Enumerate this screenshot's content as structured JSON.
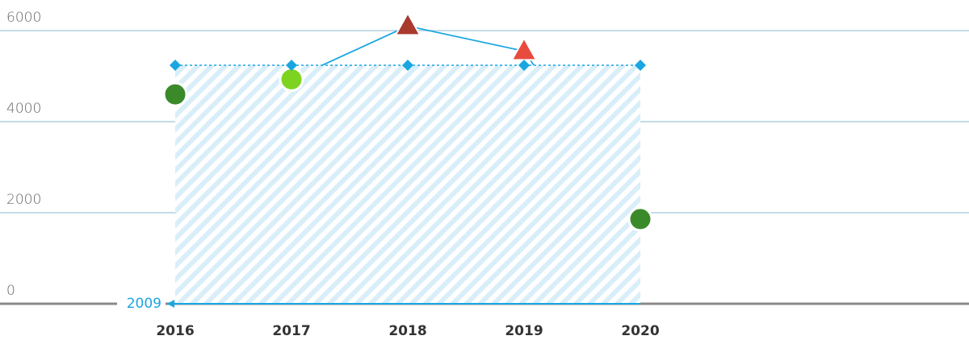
{
  "chart_data": {
    "type": "line",
    "categories": [
      "2016",
      "2017",
      "2018",
      "2019",
      "2020"
    ],
    "series": [
      {
        "values": [
          4600,
          4930,
          6100,
          5550,
          1860
        ],
        "color": "#1aa6e0",
        "point_colors": [
          "#3a8a2a",
          "#7ed321",
          "#a83a2e",
          "#e84a3e",
          "#3a8a2a"
        ],
        "point_markers": [
          "circle",
          "circle",
          "triangle",
          "triangle",
          "circle"
        ]
      },
      {
        "values": [
          5240,
          5240,
          5240,
          5240,
          5240
        ],
        "color": "#1aa6e0",
        "dashed": true,
        "hatched_area": true,
        "marker": "diamond"
      }
    ],
    "ylim": [
      0,
      6000
    ],
    "yticks": [
      0,
      2000,
      4000,
      6000
    ],
    "grid": true,
    "annotation": "2009"
  }
}
